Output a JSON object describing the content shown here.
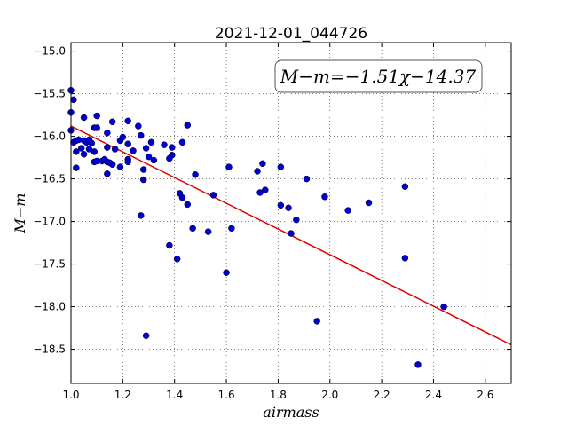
{
  "chart_data": {
    "type": "scatter",
    "title": "2021-12-01_044726",
    "xlabel": "airmass",
    "ylabel": "M−m",
    "xlim": [
      1.0,
      2.7
    ],
    "ylim": [
      -18.9,
      -14.9
    ],
    "x_ticks": [
      1.0,
      1.2,
      1.4,
      1.6,
      1.8,
      2.0,
      2.2,
      2.4,
      2.6
    ],
    "x_tick_labels": [
      "1.0",
      "1.2",
      "1.4",
      "1.6",
      "1.8",
      "2.0",
      "2.2",
      "2.4",
      "2.6"
    ],
    "y_ticks": [
      -15.0,
      -15.5,
      -16.0,
      -16.5,
      -17.0,
      -17.5,
      -18.0,
      -18.5
    ],
    "y_tick_labels": [
      "−15.0",
      "−15.5",
      "−16.0",
      "−16.5",
      "−17.0",
      "−17.5",
      "−18.0",
      "−18.5"
    ],
    "grid": true,
    "point_color": "#0000cc",
    "fit_color": "#dd0000",
    "fit": {
      "slope": -1.51,
      "intercept": -14.37
    },
    "annotation": "M−m=−1.51χ−14.37",
    "points": [
      [
        1.0,
        -15.46
      ],
      [
        1.01,
        -15.57
      ],
      [
        1.0,
        -15.72
      ],
      [
        1.0,
        -15.93
      ],
      [
        1.01,
        -16.07
      ],
      [
        1.02,
        -16.05
      ],
      [
        1.03,
        -16.04
      ],
      [
        1.05,
        -16.05
      ],
      [
        1.06,
        -16.07
      ],
      [
        1.07,
        -16.04
      ],
      [
        1.08,
        -16.08
      ],
      [
        1.04,
        -16.14
      ],
      [
        1.02,
        -16.18
      ],
      [
        1.05,
        -16.21
      ],
      [
        1.07,
        -16.15
      ],
      [
        1.02,
        -16.37
      ],
      [
        1.05,
        -15.78
      ],
      [
        1.09,
        -15.9
      ],
      [
        1.1,
        -15.9
      ],
      [
        1.1,
        -15.76
      ],
      [
        1.09,
        -16.18
      ],
      [
        1.09,
        -16.3
      ],
      [
        1.1,
        -16.29
      ],
      [
        1.12,
        -16.29
      ],
      [
        1.13,
        -16.27
      ],
      [
        1.14,
        -16.3
      ],
      [
        1.15,
        -16.31
      ],
      [
        1.16,
        -16.33
      ],
      [
        1.14,
        -16.44
      ],
      [
        1.14,
        -16.13
      ],
      [
        1.14,
        -15.96
      ],
      [
        1.16,
        -15.83
      ],
      [
        1.17,
        -16.15
      ],
      [
        1.19,
        -16.36
      ],
      [
        1.19,
        -16.05
      ],
      [
        1.2,
        -16.01
      ],
      [
        1.22,
        -16.09
      ],
      [
        1.22,
        -15.82
      ],
      [
        1.22,
        -16.27
      ],
      [
        1.22,
        -16.3
      ],
      [
        1.24,
        -16.17
      ],
      [
        1.26,
        -15.88
      ],
      [
        1.27,
        -15.99
      ],
      [
        1.29,
        -16.14
      ],
      [
        1.3,
        -16.24
      ],
      [
        1.28,
        -16.39
      ],
      [
        1.28,
        -16.51
      ],
      [
        1.27,
        -16.93
      ],
      [
        1.31,
        -16.07
      ],
      [
        1.32,
        -16.28
      ],
      [
        1.36,
        -16.1
      ],
      [
        1.38,
        -16.26
      ],
      [
        1.39,
        -16.22
      ],
      [
        1.39,
        -16.13
      ],
      [
        1.43,
        -16.07
      ],
      [
        1.45,
        -15.87
      ],
      [
        1.48,
        -16.45
      ],
      [
        1.42,
        -16.67
      ],
      [
        1.43,
        -16.72
      ],
      [
        1.45,
        -16.8
      ],
      [
        1.38,
        -17.28
      ],
      [
        1.41,
        -17.44
      ],
      [
        1.47,
        -17.08
      ],
      [
        1.29,
        -18.34
      ],
      [
        1.53,
        -17.12
      ],
      [
        1.55,
        -16.69
      ],
      [
        1.61,
        -16.36
      ],
      [
        1.6,
        -17.6
      ],
      [
        1.62,
        -17.08
      ],
      [
        1.72,
        -16.41
      ],
      [
        1.74,
        -16.32
      ],
      [
        1.73,
        -16.66
      ],
      [
        1.75,
        -16.63
      ],
      [
        1.81,
        -16.36
      ],
      [
        1.81,
        -16.81
      ],
      [
        1.84,
        -16.84
      ],
      [
        1.85,
        -17.14
      ],
      [
        1.87,
        -16.98
      ],
      [
        1.91,
        -16.5
      ],
      [
        1.98,
        -16.71
      ],
      [
        1.95,
        -18.17
      ],
      [
        2.07,
        -16.87
      ],
      [
        2.15,
        -16.78
      ],
      [
        2.29,
        -16.59
      ],
      [
        2.29,
        -17.43
      ],
      [
        2.34,
        -18.68
      ],
      [
        2.44,
        -18.0
      ]
    ]
  }
}
